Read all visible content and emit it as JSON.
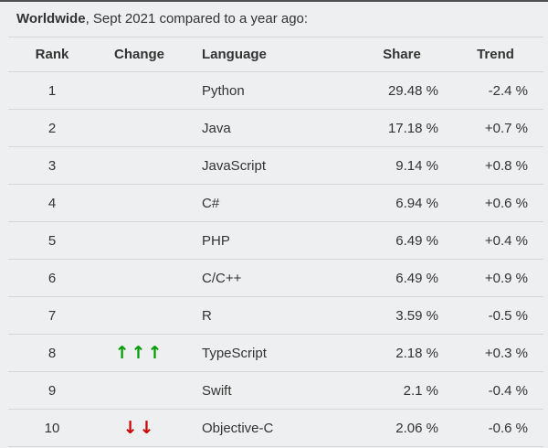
{
  "page": {
    "title": {
      "bold": "Worldwide",
      "rest": ", Sept 2021 compared to a year ago:"
    }
  },
  "table": {
    "columns": [
      "Rank",
      "Change",
      "Language",
      "Share",
      "Trend"
    ],
    "rows": [
      {
        "rank": "1",
        "change": "",
        "change_dir": "",
        "language": "Python",
        "share": "29.48 %",
        "trend": "-2.4 %"
      },
      {
        "rank": "2",
        "change": "",
        "change_dir": "",
        "language": "Java",
        "share": "17.18 %",
        "trend": "+0.7 %"
      },
      {
        "rank": "3",
        "change": "",
        "change_dir": "",
        "language": "JavaScript",
        "share": "9.14 %",
        "trend": "+0.8 %"
      },
      {
        "rank": "4",
        "change": "",
        "change_dir": "",
        "language": "C#",
        "share": "6.94 %",
        "trend": "+0.6 %"
      },
      {
        "rank": "5",
        "change": "",
        "change_dir": "",
        "language": "PHP",
        "share": "6.49 %",
        "trend": "+0.4 %"
      },
      {
        "rank": "6",
        "change": "",
        "change_dir": "",
        "language": "C/C++",
        "share": "6.49 %",
        "trend": "+0.9 %"
      },
      {
        "rank": "7",
        "change": "",
        "change_dir": "",
        "language": "R",
        "share": "3.59 %",
        "trend": "-0.5 %"
      },
      {
        "rank": "8",
        "change": "↑↑↑",
        "change_dir": "up",
        "language": "TypeScript",
        "share": "2.18 %",
        "trend": "+0.3 %"
      },
      {
        "rank": "9",
        "change": "",
        "change_dir": "",
        "language": "Swift",
        "share": "2.1 %",
        "trend": "-0.4 %"
      },
      {
        "rank": "10",
        "change": "↓↓",
        "change_dir": "down",
        "language": "Objective-C",
        "share": "2.06 %",
        "trend": "-0.6 %"
      }
    ]
  },
  "colors": {
    "background": "#edeff0",
    "text": "#333333",
    "row_border": "#d3d6d8",
    "up_arrow": "#009c00",
    "down_arrow": "#cc0000",
    "top_edge_line": "#4f4f4f"
  },
  "chart_data": {
    "type": "table",
    "title": "Worldwide, Sept 2021 compared to a year ago:",
    "columns": [
      "Rank",
      "Change",
      "Language",
      "Share",
      "Trend"
    ],
    "rows": [
      [
        1,
        "",
        "Python",
        29.48,
        -2.4
      ],
      [
        2,
        "",
        "Java",
        17.18,
        0.7
      ],
      [
        3,
        "",
        "JavaScript",
        9.14,
        0.8
      ],
      [
        4,
        "",
        "C#",
        6.94,
        0.6
      ],
      [
        5,
        "",
        "PHP",
        6.49,
        0.4
      ],
      [
        6,
        "",
        "C/C++",
        6.49,
        0.9
      ],
      [
        7,
        "",
        "R",
        3.59,
        -0.5
      ],
      [
        8,
        "up 3",
        "TypeScript",
        2.18,
        0.3
      ],
      [
        9,
        "",
        "Swift",
        2.1,
        -0.4
      ],
      [
        10,
        "down 2",
        "Objective-C",
        2.06,
        -0.6
      ]
    ]
  }
}
